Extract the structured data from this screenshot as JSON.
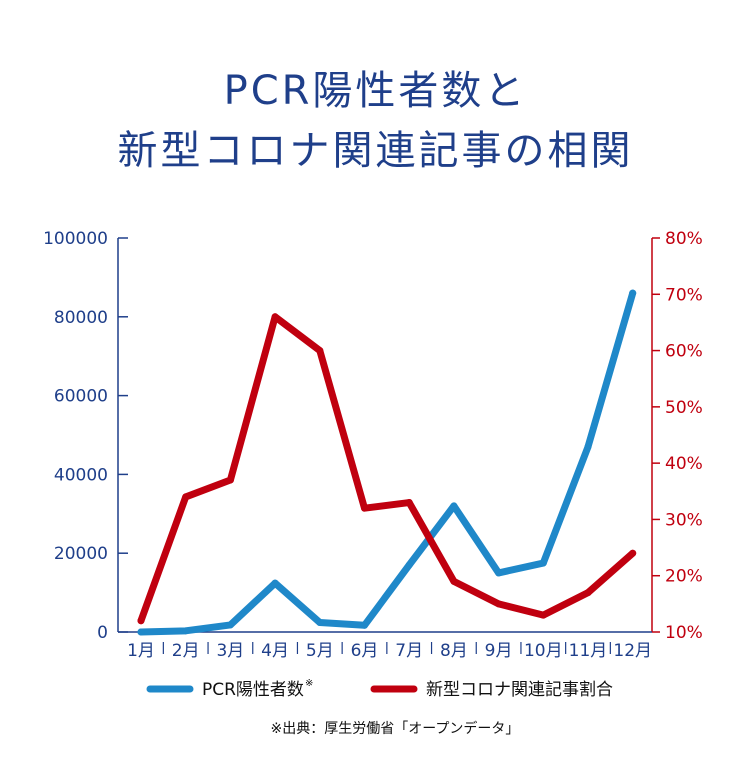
{
  "title": {
    "line1": "PCR陽性者数と",
    "line2": "新型コロナ関連記事の相関"
  },
  "chart_data": {
    "type": "line",
    "categories": [
      "1月",
      "2月",
      "3月",
      "4月",
      "5月",
      "6月",
      "7月",
      "8月",
      "9月",
      "10月",
      "11月",
      "12月"
    ],
    "series": [
      {
        "name": "PCR陽性者数",
        "axis": "left",
        "color": "#1f88c9",
        "values": [
          0,
          300,
          1800,
          12400,
          2400,
          1700,
          17000,
          32000,
          15000,
          17500,
          47000,
          86000
        ]
      },
      {
        "name": "新型コロナ関連記事割合",
        "axis": "right",
        "color": "#c0000f",
        "values": [
          12,
          34,
          37,
          66,
          60,
          32,
          33,
          19,
          15,
          13,
          17,
          24
        ]
      }
    ],
    "yleft": {
      "min": 0,
      "max": 100000,
      "ticks": [
        "0",
        "20000",
        "40000",
        "60000",
        "80000",
        "100000"
      ],
      "color": "#1f3f8a"
    },
    "yright": {
      "min": 10,
      "max": 80,
      "ticks": [
        "10%",
        "20%",
        "30%",
        "40%",
        "50%",
        "60%",
        "70%",
        "80%"
      ],
      "color": "#c0000f"
    },
    "legend": {
      "position": "bottom",
      "items": [
        {
          "label": "PCR陽性者数",
          "note": "※",
          "color": "#1f88c9"
        },
        {
          "label": "新型コロナ関連記事割合",
          "color": "#c0000f"
        }
      ]
    },
    "grid": false
  },
  "source": "※出典：厚生労働省「オープンデータ」"
}
